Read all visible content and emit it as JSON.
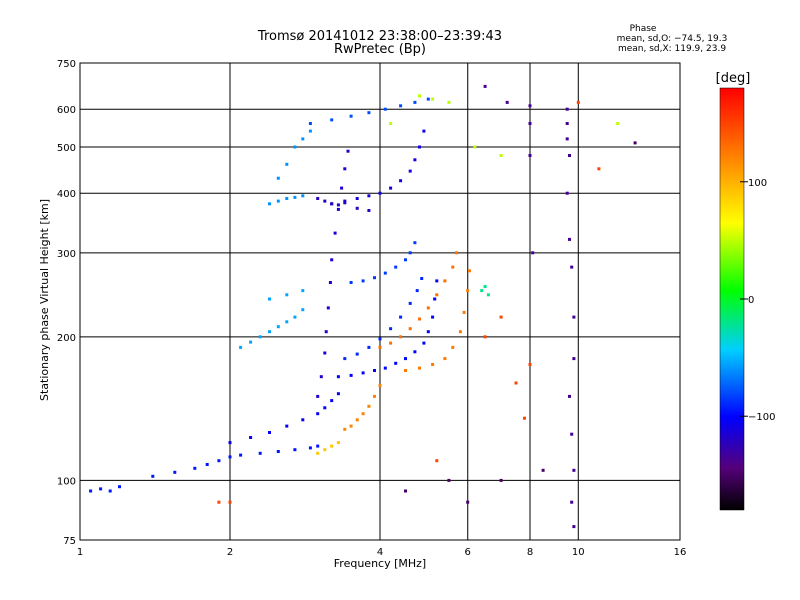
{
  "chart_data": {
    "type": "scatter",
    "title": "Tromsø 20141012 23:38:00–23:39:43",
    "subtitle": "RwPretec (Bp)",
    "xlabel": "Frequency [MHz]",
    "ylabel": "Stationary phase Virtual Height [km]",
    "x_scale": "log",
    "y_scale": "log",
    "xlim": [
      1,
      16
    ],
    "ylim": [
      75,
      750
    ],
    "x_ticks": [
      1,
      2,
      4,
      6,
      8,
      10,
      16
    ],
    "x_tick_labels": [
      "1",
      "2",
      "4",
      "6",
      "8",
      "10",
      "16"
    ],
    "y_ticks": [
      75,
      100,
      200,
      300,
      400,
      500,
      600,
      750
    ],
    "y_tick_labels": [
      "75",
      "100",
      "200",
      "300",
      "400",
      "500",
      "600",
      "750"
    ],
    "grid": true,
    "stats": {
      "heading": "Phase",
      "line_o": "mean, sd,O: −74.5, 19.3",
      "line_x": "mean, sd,X: 119.9, 23.9"
    },
    "colorbar": {
      "label": "[deg]",
      "range": [
        -180,
        180
      ],
      "ticks": [
        100,
        0,
        -100
      ],
      "tick_labels": [
        "100",
        "0",
        "−100"
      ],
      "colormap": "rainbow"
    },
    "series": [
      {
        "phase": -95,
        "points": [
          [
            1.05,
            95
          ],
          [
            1.1,
            96
          ],
          [
            1.15,
            95
          ],
          [
            1.2,
            97
          ],
          [
            1.4,
            102
          ],
          [
            1.55,
            104
          ],
          [
            1.7,
            106
          ],
          [
            1.8,
            108
          ],
          [
            1.9,
            110
          ],
          [
            2.0,
            112
          ],
          [
            2.1,
            113
          ],
          [
            2.3,
            114
          ],
          [
            2.5,
            115
          ],
          [
            2.7,
            116
          ],
          [
            2.9,
            117
          ],
          [
            3.0,
            118
          ]
        ]
      },
      {
        "phase": -105,
        "points": [
          [
            2.0,
            120
          ],
          [
            2.2,
            123
          ],
          [
            2.4,
            126
          ],
          [
            2.6,
            130
          ],
          [
            2.8,
            134
          ],
          [
            3.0,
            138
          ],
          [
            3.1,
            142
          ],
          [
            3.2,
            147
          ],
          [
            3.3,
            152
          ]
        ]
      },
      {
        "phase": -115,
        "points": [
          [
            3.0,
            150
          ],
          [
            3.05,
            165
          ],
          [
            3.1,
            185
          ],
          [
            3.12,
            205
          ],
          [
            3.15,
            230
          ],
          [
            3.18,
            260
          ],
          [
            3.2,
            290
          ],
          [
            3.25,
            330
          ],
          [
            3.3,
            370
          ],
          [
            3.35,
            410
          ],
          [
            3.4,
            450
          ],
          [
            3.45,
            490
          ]
        ]
      },
      {
        "phase": -100,
        "points": [
          [
            3.3,
            165
          ],
          [
            3.5,
            166
          ],
          [
            3.7,
            168
          ],
          [
            3.9,
            170
          ],
          [
            4.1,
            172
          ],
          [
            4.3,
            176
          ],
          [
            4.5,
            180
          ],
          [
            4.7,
            186
          ],
          [
            4.9,
            194
          ],
          [
            5.0,
            205
          ],
          [
            5.1,
            220
          ],
          [
            5.15,
            240
          ],
          [
            5.2,
            262
          ]
        ]
      },
      {
        "phase": -90,
        "points": [
          [
            3.4,
            180
          ],
          [
            3.6,
            184
          ],
          [
            3.8,
            190
          ],
          [
            4.0,
            198
          ],
          [
            4.2,
            208
          ],
          [
            4.4,
            220
          ],
          [
            4.6,
            235
          ],
          [
            4.75,
            250
          ],
          [
            4.85,
            265
          ]
        ]
      },
      {
        "phase": -85,
        "points": [
          [
            3.5,
            260
          ],
          [
            3.7,
            262
          ],
          [
            3.9,
            266
          ],
          [
            4.1,
            272
          ],
          [
            4.3,
            280
          ],
          [
            4.5,
            290
          ],
          [
            4.6,
            300
          ],
          [
            4.7,
            315
          ]
        ]
      },
      {
        "phase": -110,
        "points": [
          [
            3.2,
            380
          ],
          [
            3.4,
            385
          ],
          [
            3.6,
            390
          ],
          [
            3.8,
            395
          ],
          [
            4.0,
            400
          ],
          [
            4.2,
            410
          ],
          [
            4.4,
            425
          ],
          [
            4.6,
            445
          ],
          [
            4.7,
            470
          ],
          [
            4.8,
            500
          ],
          [
            4.9,
            540
          ]
        ]
      },
      {
        "phase": -120,
        "points": [
          [
            3.0,
            390
          ],
          [
            3.1,
            385
          ],
          [
            3.2,
            380
          ],
          [
            3.3,
            378
          ],
          [
            3.4,
            382
          ],
          [
            3.6,
            372
          ],
          [
            3.8,
            368
          ]
        ]
      },
      {
        "phase": -60,
        "points": [
          [
            2.4,
            380
          ],
          [
            2.5,
            385
          ],
          [
            2.6,
            390
          ],
          [
            2.7,
            392
          ],
          [
            2.8,
            395
          ],
          [
            2.5,
            430
          ],
          [
            2.6,
            460
          ],
          [
            2.7,
            500
          ],
          [
            2.8,
            520
          ],
          [
            2.9,
            540
          ]
        ]
      },
      {
        "phase": -55,
        "points": [
          [
            2.1,
            190
          ],
          [
            2.2,
            195
          ],
          [
            2.3,
            200
          ],
          [
            2.4,
            205
          ],
          [
            2.5,
            210
          ],
          [
            2.6,
            215
          ],
          [
            2.7,
            220
          ],
          [
            2.8,
            228
          ],
          [
            2.4,
            240
          ],
          [
            2.6,
            245
          ],
          [
            2.8,
            250
          ]
        ]
      },
      {
        "phase": -80,
        "points": [
          [
            2.9,
            560
          ],
          [
            3.2,
            570
          ],
          [
            3.5,
            580
          ],
          [
            3.8,
            590
          ],
          [
            4.1,
            600
          ],
          [
            4.4,
            610
          ],
          [
            4.7,
            620
          ],
          [
            5.0,
            630
          ]
        ]
      },
      {
        "phase": 130,
        "points": [
          [
            4.0,
            190
          ],
          [
            4.2,
            194
          ],
          [
            4.4,
            200
          ],
          [
            4.6,
            208
          ],
          [
            4.8,
            218
          ],
          [
            5.0,
            230
          ],
          [
            5.2,
            245
          ],
          [
            5.4,
            262
          ],
          [
            5.6,
            280
          ],
          [
            5.7,
            300
          ]
        ]
      },
      {
        "phase": 125,
        "points": [
          [
            4.5,
            170
          ],
          [
            4.8,
            172
          ],
          [
            5.1,
            175
          ],
          [
            5.4,
            180
          ],
          [
            5.6,
            190
          ],
          [
            5.8,
            205
          ],
          [
            5.9,
            225
          ],
          [
            6.0,
            250
          ],
          [
            6.05,
            275
          ]
        ]
      },
      {
        "phase": 120,
        "points": [
          [
            3.4,
            128
          ],
          [
            3.5,
            130
          ],
          [
            3.6,
            134
          ],
          [
            3.7,
            138
          ],
          [
            3.8,
            143
          ],
          [
            3.9,
            150
          ],
          [
            4.0,
            158
          ]
        ]
      },
      {
        "phase": 90,
        "points": [
          [
            3.0,
            114
          ],
          [
            3.1,
            116
          ],
          [
            3.2,
            118
          ],
          [
            3.3,
            120
          ]
        ]
      },
      {
        "phase": -20,
        "points": [
          [
            6.4,
            250
          ],
          [
            6.5,
            255
          ],
          [
            6.6,
            245
          ]
        ]
      },
      {
        "phase": -135,
        "points": [
          [
            8.0,
            610
          ],
          [
            8.0,
            560
          ],
          [
            8.0,
            480
          ],
          [
            8.1,
            300
          ],
          [
            9.5,
            600
          ],
          [
            9.5,
            560
          ],
          [
            9.5,
            520
          ],
          [
            9.6,
            480
          ],
          [
            9.5,
            400
          ],
          [
            9.6,
            320
          ],
          [
            9.7,
            280
          ],
          [
            9.8,
            220
          ],
          [
            9.8,
            180
          ],
          [
            9.6,
            150
          ],
          [
            9.7,
            125
          ],
          [
            9.8,
            105
          ],
          [
            9.7,
            90
          ],
          [
            9.8,
            80
          ],
          [
            6.5,
            670
          ],
          [
            7.2,
            620
          ]
        ]
      },
      {
        "phase": 50,
        "points": [
          [
            4.8,
            640
          ],
          [
            5.1,
            630
          ],
          [
            5.5,
            620
          ],
          [
            4.2,
            560
          ],
          [
            12.0,
            560
          ],
          [
            6.2,
            500
          ],
          [
            7.0,
            480
          ]
        ]
      },
      {
        "phase": -150,
        "points": [
          [
            13.0,
            510
          ],
          [
            6.0,
            90
          ],
          [
            4.5,
            95
          ],
          [
            7.0,
            100
          ],
          [
            8.5,
            105
          ],
          [
            5.5,
            100
          ]
        ]
      },
      {
        "phase": 150,
        "points": [
          [
            1.9,
            90
          ],
          [
            2.0,
            90
          ],
          [
            7.8,
            135
          ],
          [
            7.5,
            160
          ],
          [
            8.0,
            175
          ],
          [
            10.0,
            620
          ],
          [
            11.0,
            450
          ],
          [
            6.5,
            200
          ],
          [
            7.0,
            220
          ],
          [
            5.2,
            110
          ]
        ]
      }
    ]
  }
}
